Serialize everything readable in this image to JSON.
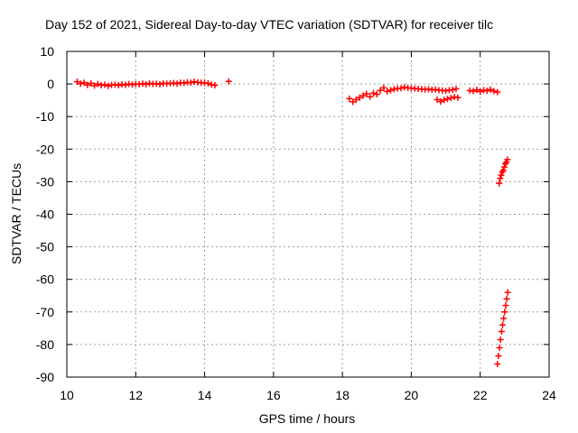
{
  "chart_data": {
    "type": "scatter",
    "title": "Day 152 of 2021, Sidereal Day-to-day VTEC variation (SDTVAR) for receiver tilc",
    "xlabel": "GPS time / hours",
    "ylabel": "SDTVAR / TECUs",
    "xlim": [
      10,
      24
    ],
    "ylim": [
      -90,
      10
    ],
    "xticks": [
      10,
      12,
      14,
      16,
      18,
      20,
      22,
      24
    ],
    "yticks": [
      10,
      0,
      -10,
      -20,
      -30,
      -40,
      -50,
      -60,
      -70,
      -80,
      -90
    ],
    "grid": true,
    "marker": "plus",
    "series_color": "#ff0000",
    "series": [
      {
        "points": [
          [
            10.3,
            0.7
          ],
          [
            10.4,
            0.1
          ],
          [
            10.5,
            0.4
          ],
          [
            10.6,
            -0.3
          ],
          [
            10.7,
            0.2
          ],
          [
            10.8,
            -0.5
          ],
          [
            10.9,
            0.0
          ],
          [
            11.0,
            -0.4
          ],
          [
            11.1,
            -0.2
          ],
          [
            11.2,
            -0.6
          ],
          [
            11.3,
            -0.3
          ],
          [
            11.4,
            -0.2
          ],
          [
            11.5,
            -0.4
          ],
          [
            11.6,
            -0.1
          ],
          [
            11.7,
            -0.3
          ],
          [
            11.8,
            0.0
          ],
          [
            11.9,
            -0.2
          ],
          [
            12.0,
            0.0
          ],
          [
            12.1,
            -0.1
          ],
          [
            12.2,
            0.1
          ],
          [
            12.3,
            -0.1
          ],
          [
            12.4,
            0.2
          ],
          [
            12.5,
            0.0
          ],
          [
            12.6,
            0.1
          ],
          [
            12.7,
            -0.1
          ],
          [
            12.8,
            0.2
          ],
          [
            12.9,
            0.1
          ],
          [
            13.0,
            0.2
          ],
          [
            13.1,
            0.3
          ],
          [
            13.2,
            0.1
          ],
          [
            13.3,
            0.4
          ],
          [
            13.4,
            0.3
          ],
          [
            13.5,
            0.5
          ],
          [
            13.6,
            0.4
          ],
          [
            13.7,
            0.7
          ],
          [
            13.8,
            0.5
          ],
          [
            13.9,
            0.4
          ],
          [
            14.0,
            0.3
          ],
          [
            14.1,
            0.2
          ],
          [
            14.2,
            -0.2
          ],
          [
            14.3,
            -0.4
          ],
          [
            14.7,
            0.8
          ],
          [
            18.2,
            -4.5
          ],
          [
            18.3,
            -5.5
          ],
          [
            18.4,
            -4.8
          ],
          [
            18.5,
            -4.2
          ],
          [
            18.6,
            -3.6
          ],
          [
            18.7,
            -3.0
          ],
          [
            18.8,
            -3.9
          ],
          [
            18.9,
            -2.8
          ],
          [
            19.0,
            -3.2
          ],
          [
            19.1,
            -2.0
          ],
          [
            19.2,
            -1.2
          ],
          [
            19.3,
            -2.3
          ],
          [
            19.4,
            -1.9
          ],
          [
            19.5,
            -1.6
          ],
          [
            19.6,
            -1.4
          ],
          [
            19.7,
            -1.3
          ],
          [
            19.8,
            -1.0
          ],
          [
            19.9,
            -1.2
          ],
          [
            20.0,
            -1.3
          ],
          [
            20.1,
            -1.4
          ],
          [
            20.2,
            -1.5
          ],
          [
            20.3,
            -1.6
          ],
          [
            20.4,
            -1.7
          ],
          [
            20.5,
            -1.6
          ],
          [
            20.6,
            -1.8
          ],
          [
            20.7,
            -1.7
          ],
          [
            20.8,
            -1.9
          ],
          [
            20.9,
            -2.0
          ],
          [
            21.0,
            -2.1
          ],
          [
            21.1,
            -1.9
          ],
          [
            21.2,
            -1.8
          ],
          [
            21.3,
            -1.5
          ],
          [
            20.75,
            -4.8
          ],
          [
            20.85,
            -5.4
          ],
          [
            20.95,
            -4.9
          ],
          [
            21.05,
            -4.6
          ],
          [
            21.15,
            -4.3
          ],
          [
            21.25,
            -4.0
          ],
          [
            21.35,
            -4.2
          ],
          [
            21.7,
            -2.0
          ],
          [
            21.8,
            -2.2
          ],
          [
            21.9,
            -1.8
          ],
          [
            22.0,
            -2.3
          ],
          [
            22.1,
            -1.9
          ],
          [
            22.2,
            -2.1
          ],
          [
            22.3,
            -1.7
          ],
          [
            22.4,
            -2.2
          ],
          [
            22.5,
            -2.5
          ],
          [
            22.55,
            -30.5
          ],
          [
            22.58,
            -29.0
          ],
          [
            22.61,
            -28.0
          ],
          [
            22.64,
            -27.0
          ],
          [
            22.67,
            -26.5
          ],
          [
            22.7,
            -25.5
          ],
          [
            22.73,
            -24.5
          ],
          [
            22.76,
            -24.0
          ],
          [
            22.79,
            -23.2
          ],
          [
            22.5,
            -86.0
          ],
          [
            22.53,
            -83.5
          ],
          [
            22.56,
            -81.0
          ],
          [
            22.59,
            -78.5
          ],
          [
            22.62,
            -76.0
          ],
          [
            22.65,
            -74.0
          ],
          [
            22.68,
            -72.0
          ],
          [
            22.71,
            -70.0
          ],
          [
            22.74,
            -68.0
          ],
          [
            22.77,
            -66.0
          ],
          [
            22.8,
            -64.0
          ]
        ]
      }
    ]
  }
}
